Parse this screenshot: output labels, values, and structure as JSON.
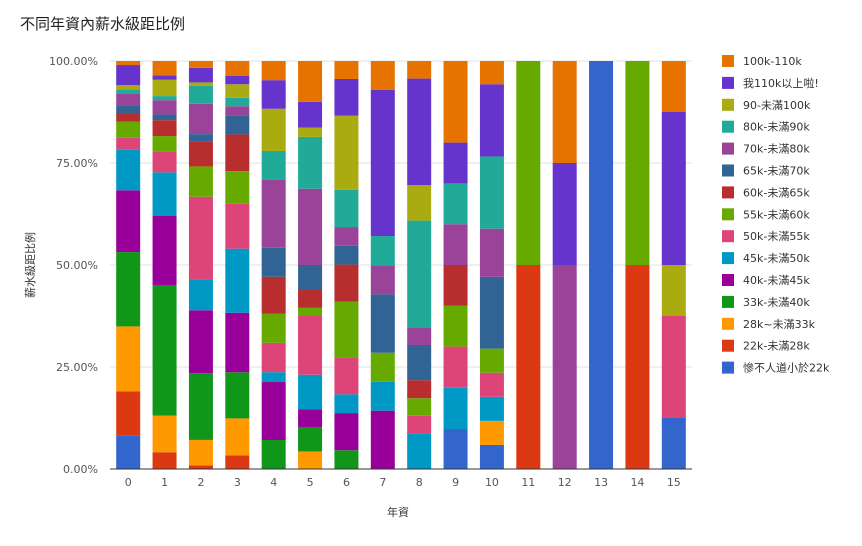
{
  "chart_data": {
    "type": "bar",
    "stacked": "percent",
    "title": "不同年資內薪水級距比例",
    "xlabel": "年資",
    "ylabel": "薪水級距比例",
    "ylim": [
      0,
      100
    ],
    "yticks": [
      "0.00%",
      "25.00%",
      "50.00%",
      "75.00%",
      "100.00%"
    ],
    "ytick_values": [
      0,
      25,
      50,
      75,
      100
    ],
    "grid": true,
    "legend_position": "right",
    "categories": [
      "0",
      "1",
      "2",
      "3",
      "4",
      "5",
      "6",
      "7",
      "8",
      "9",
      "10",
      "11",
      "12",
      "13",
      "14",
      "15"
    ],
    "series": [
      {
        "name": "慘不人道小於22k",
        "color": "#3366cc",
        "values": [
          8.2,
          0,
          0,
          0,
          0,
          0,
          0,
          0,
          0,
          9.8,
          5.9,
          0,
          0,
          100,
          0,
          12.5
        ]
      },
      {
        "name": "22k-未滿28k",
        "color": "#dc3912",
        "values": [
          11.0,
          4.1,
          0.9,
          3.3,
          0,
          0,
          0,
          0,
          0,
          0,
          0,
          50,
          0,
          0,
          50,
          0
        ]
      },
      {
        "name": "28k~未滿33k",
        "color": "#ff9900",
        "values": [
          16.1,
          9.0,
          6.3,
          9.1,
          0,
          4.3,
          0,
          0,
          0,
          0,
          5.9,
          0,
          0,
          0,
          0,
          0
        ]
      },
      {
        "name": "33k-未滿40k",
        "color": "#109618",
        "values": [
          18.4,
          32.0,
          16.5,
          11.3,
          6.8,
          6.0,
          4.6,
          0,
          0,
          0,
          0,
          0,
          0,
          0,
          0,
          0
        ]
      },
      {
        "name": "40k-未滿45k",
        "color": "#990099",
        "values": [
          15.3,
          17.0,
          15.6,
          14.6,
          13.6,
          4.3,
          9.1,
          14.3,
          0,
          0,
          0,
          0,
          0,
          0,
          0,
          0
        ]
      },
      {
        "name": "45k-未滿50k",
        "color": "#0099c6",
        "values": [
          10.0,
          10.6,
          7.5,
          15.7,
          2.3,
          8.5,
          4.6,
          7.1,
          8.7,
          10.1,
          5.9,
          0,
          0,
          0,
          0,
          0
        ]
      },
      {
        "name": "50k-未滿55k",
        "color": "#dd4477",
        "values": [
          3.0,
          5.2,
          20.6,
          11.0,
          6.9,
          14.4,
          9.1,
          0,
          4.3,
          10.1,
          5.9,
          0,
          0,
          0,
          0,
          25
        ]
      },
      {
        "name": "55k-未滿60k",
        "color": "#66aa00",
        "values": [
          4.0,
          3.7,
          7.5,
          8.0,
          6.8,
          2.0,
          13.6,
          7.1,
          4.3,
          10.0,
          5.9,
          50,
          0,
          0,
          50,
          0
        ]
      },
      {
        "name": "60k-未滿65k",
        "color": "#b82e2e",
        "values": [
          2.0,
          3.9,
          6.2,
          9.0,
          8.7,
          4.5,
          9.1,
          0,
          4.4,
          10.0,
          0,
          0,
          0,
          0,
          0,
          0
        ]
      },
      {
        "name": "65k-未滿70k",
        "color": "#316395",
        "values": [
          2.0,
          1.4,
          1.8,
          4.7,
          6.8,
          6.0,
          4.6,
          14.3,
          8.6,
          0,
          17.6,
          0,
          0,
          0,
          0,
          0
        ]
      },
      {
        "name": "70k-未滿80k",
        "color": "#994499",
        "values": [
          3.0,
          3.5,
          7.5,
          2.2,
          15.9,
          18.7,
          4.6,
          7.1,
          4.3,
          10.0,
          11.8,
          0,
          50,
          0,
          0,
          0
        ]
      },
      {
        "name": "80k-未滿90k",
        "color": "#22aa99",
        "values": [
          1.0,
          1.0,
          4.5,
          2.1,
          6.8,
          12.7,
          9.1,
          7.2,
          26.1,
          10.0,
          17.7,
          0,
          0,
          0,
          0,
          0
        ]
      },
      {
        "name": "90-未滿100k",
        "color": "#aaaa11",
        "values": [
          1.0,
          4.0,
          0.8,
          3.3,
          9.9,
          2.3,
          18.2,
          0,
          8.7,
          0,
          0,
          0,
          0,
          0,
          0,
          12.5
        ]
      },
      {
        "name": "我110k以上啦!",
        "color": "#6633cc",
        "values": [
          5.0,
          1.1,
          3.6,
          2.1,
          6.7,
          6.3,
          9.0,
          35.8,
          26.0,
          10.0,
          17.7,
          0,
          25,
          0,
          0,
          37.5
        ]
      },
      {
        "name": "100k-110k",
        "color": "#e67300",
        "values": [
          1.0,
          3.5,
          1.7,
          3.6,
          4.5,
          10.0,
          4.4,
          7.1,
          4.3,
          20.0,
          5.7,
          0,
          25,
          0,
          0,
          12.5
        ]
      }
    ]
  }
}
